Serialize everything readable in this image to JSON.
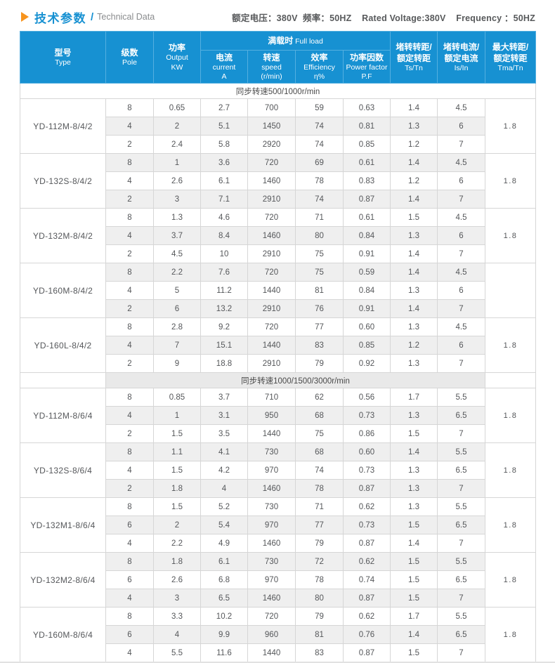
{
  "header": {
    "title_cn": "技术参数",
    "separator": "/",
    "title_en": "Technical Data",
    "ratings": "额定电压：380V  频率：50HZ    Rated Voltage:380V    Frequency ：50HZ"
  },
  "colors": {
    "accent_blue": "#1791D2",
    "accent_orange": "#F7941E",
    "header_grid": "#54AFE0",
    "row_stripe": "#EFEFEF",
    "section_band": "#E9E9E9",
    "body_grid": "#D6D6D6",
    "text": "#55575A"
  },
  "table": {
    "full_load": {
      "cn": "满载时",
      "en": " Full load"
    },
    "columns": {
      "type": {
        "cn": "型号",
        "en": "Type"
      },
      "pole": {
        "cn": "级数",
        "en": "Pole"
      },
      "output": {
        "cn": "功率",
        "en": "Output\nKW"
      },
      "current": {
        "cn": "电流",
        "en": "current\nA"
      },
      "speed": {
        "cn": "转速",
        "en": "speed\n(r/min)"
      },
      "efficiency": {
        "cn": "效率",
        "en": "Efficiency\nη%"
      },
      "power_factor": {
        "cn": "功率因数",
        "en": "Power factor\nP.F"
      },
      "ts_tn": {
        "cn": "堵转转距/\n额定转距",
        "en": "Ts/Tn"
      },
      "is_in": {
        "cn": "堵转电流/\n额定电流",
        "en": "Is/In"
      },
      "tma_tn": {
        "cn": "最大转距/\n额定转距",
        "en": "Tma/Tn"
      }
    },
    "sections": [
      {
        "label": "同步转速500/1000r/min",
        "band": "full",
        "models": [
          {
            "type": "YD-112M-8/4/2",
            "tma": "1.8",
            "rows": [
              [
                "8",
                "0.65",
                "2.7",
                "700",
                "59",
                "0.63",
                "1.4",
                "4.5"
              ],
              [
                "4",
                "2",
                "5.1",
                "1450",
                "74",
                "0.81",
                "1.3",
                "6"
              ],
              [
                "2",
                "2.4",
                "5.8",
                "2920",
                "74",
                "0.85",
                "1.2",
                "7"
              ]
            ]
          },
          {
            "type": "YD-132S-8/4/2",
            "tma": "1.8",
            "rows": [
              [
                "8",
                "1",
                "3.6",
                "720",
                "69",
                "0.61",
                "1.4",
                "4.5"
              ],
              [
                "4",
                "2.6",
                "6.1",
                "1460",
                "78",
                "0.83",
                "1.2",
                "6"
              ],
              [
                "2",
                "3",
                "7.1",
                "2910",
                "74",
                "0.87",
                "1.4",
                "7"
              ]
            ]
          },
          {
            "type": "YD-132M-8/4/2",
            "tma": "1.8",
            "rows": [
              [
                "8",
                "1.3",
                "4.6",
                "720",
                "71",
                "0.61",
                "1.5",
                "4.5"
              ],
              [
                "4",
                "3.7",
                "8.4",
                "1460",
                "80",
                "0.84",
                "1.3",
                "6"
              ],
              [
                "2",
                "4.5",
                "10",
                "2910",
                "75",
                "0.91",
                "1.4",
                "7"
              ]
            ]
          },
          {
            "type": "YD-160M-8/4/2",
            "tma": "",
            "rows": [
              [
                "8",
                "2.2",
                "7.6",
                "720",
                "75",
                "0.59",
                "1.4",
                "4.5"
              ],
              [
                "4",
                "5",
                "11.2",
                "1440",
                "81",
                "0.84",
                "1.3",
                "6"
              ],
              [
                "2",
                "6",
                "13.2",
                "2910",
                "76",
                "0.91",
                "1.4",
                "7"
              ]
            ]
          },
          {
            "type": "YD-160L-8/4/2",
            "tma": "1.8",
            "rows": [
              [
                "8",
                "2.8",
                "9.2",
                "720",
                "77",
                "0.60",
                "1.3",
                "4.5"
              ],
              [
                "4",
                "7",
                "15.1",
                "1440",
                "83",
                "0.85",
                "1.2",
                "6"
              ],
              [
                "2",
                "9",
                "18.8",
                "2910",
                "79",
                "0.92",
                "1.3",
                "7"
              ]
            ]
          }
        ]
      },
      {
        "label": "同步转速1000/1500/3000r/min",
        "band": "inset",
        "models": [
          {
            "type": "YD-112M-8/6/4",
            "tma": "1.8",
            "rows": [
              [
                "8",
                "0.85",
                "3.7",
                "710",
                "62",
                "0.56",
                "1.7",
                "5.5"
              ],
              [
                "4",
                "1",
                "3.1",
                "950",
                "68",
                "0.73",
                "1.3",
                "6.5"
              ],
              [
                "2",
                "1.5",
                "3.5",
                "1440",
                "75",
                "0.86",
                "1.5",
                "7"
              ]
            ]
          },
          {
            "type": "YD-132S-8/6/4",
            "tma": "1.8",
            "rows": [
              [
                "8",
                "1.1",
                "4.1",
                "730",
                "68",
                "0.60",
                "1.4",
                "5.5"
              ],
              [
                "4",
                "1.5",
                "4.2",
                "970",
                "74",
                "0.73",
                "1.3",
                "6.5"
              ],
              [
                "2",
                "1.8",
                "4",
                "1460",
                "78",
                "0.87",
                "1.3",
                "7"
              ]
            ]
          },
          {
            "type": "YD-132M1-8/6/4",
            "tma": "1.8",
            "rows": [
              [
                "8",
                "1.5",
                "5.2",
                "730",
                "71",
                "0.62",
                "1.3",
                "5.5"
              ],
              [
                "6",
                "2",
                "5.4",
                "970",
                "77",
                "0.73",
                "1.5",
                "6.5"
              ],
              [
                "4",
                "2.2",
                "4.9",
                "1460",
                "79",
                "0.87",
                "1.4",
                "7"
              ]
            ]
          },
          {
            "type": "YD-132M2-8/6/4",
            "tma": "1.8",
            "rows": [
              [
                "8",
                "1.8",
                "6.1",
                "730",
                "72",
                "0.62",
                "1.5",
                "5.5"
              ],
              [
                "6",
                "2.6",
                "6.8",
                "970",
                "78",
                "0.74",
                "1.5",
                "6.5"
              ],
              [
                "4",
                "3",
                "6.5",
                "1460",
                "80",
                "0.87",
                "1.5",
                "7"
              ]
            ]
          },
          {
            "type": "YD-160M-8/6/4",
            "tma": "1.8",
            "rows": [
              [
                "8",
                "3.3",
                "10.2",
                "720",
                "79",
                "0.62",
                "1.7",
                "5.5"
              ],
              [
                "6",
                "4",
                "9.9",
                "960",
                "81",
                "0.76",
                "1.4",
                "6.5"
              ],
              [
                "4",
                "5.5",
                "11.6",
                "1440",
                "83",
                "0.87",
                "1.5",
                "7"
              ]
            ]
          }
        ]
      }
    ]
  }
}
